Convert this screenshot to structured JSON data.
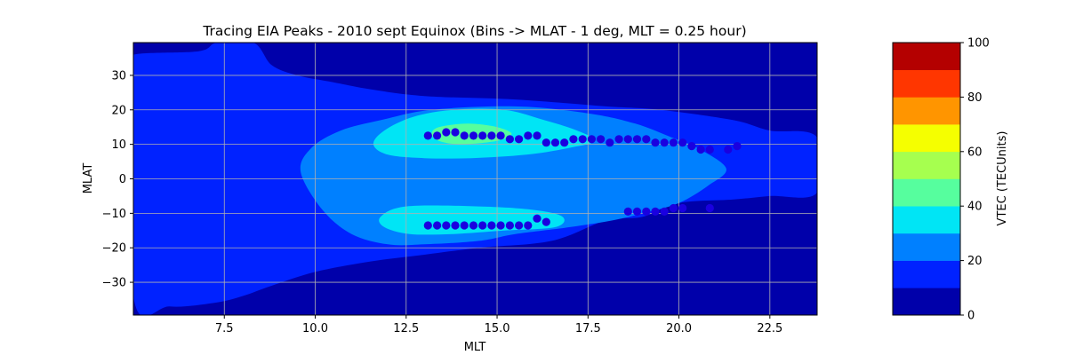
{
  "chart_data": {
    "type": "heatmap",
    "subtype": "filled-contour with scatter overlay",
    "title": "Tracing EIA Peaks - 2010 sept Equinox (Bins -> MLAT - 1 deg, MLT = 0.25 hour)",
    "xlabel": "MLT",
    "ylabel": "MLAT",
    "xlim": [
      5.0,
      23.8
    ],
    "ylim": [
      -39.5,
      39.5
    ],
    "x_ticks": [
      7.5,
      10.0,
      12.5,
      15.0,
      17.5,
      20.0,
      22.5
    ],
    "x_tick_labels": [
      "7.5",
      "10.0",
      "12.5",
      "15.0",
      "17.5",
      "20.0",
      "22.5"
    ],
    "y_ticks": [
      -30,
      -20,
      -10,
      0,
      10,
      20,
      30
    ],
    "y_tick_labels": [
      "−30",
      "−20",
      "−10",
      "0",
      "10",
      "20",
      "30"
    ],
    "grid": true,
    "colorbar": {
      "label": "VTEC (TECUnits)",
      "levels": [
        0,
        10,
        20,
        30,
        40,
        50,
        60,
        70,
        80,
        90,
        100
      ],
      "tick_values": [
        0,
        20,
        40,
        60,
        80,
        100
      ],
      "tick_labels": [
        "0",
        "20",
        "40",
        "60",
        "80",
        "100"
      ],
      "colors": [
        "#0000aa",
        "#0022ff",
        "#0080ff",
        "#00e5f5",
        "#56fe9e",
        "#a6ff4f",
        "#f5ff00",
        "#ff9500",
        "#ff3600",
        "#b40000"
      ]
    },
    "contours": [
      {
        "level": 10,
        "points": [
          [
            5.0,
            32
          ],
          [
            5.0,
            36
          ],
          [
            6.8,
            37
          ],
          [
            7.3,
            39.5
          ],
          [
            8.3,
            39.5
          ],
          [
            8.8,
            33
          ],
          [
            9.5,
            30
          ],
          [
            10.5,
            28
          ],
          [
            11.5,
            26
          ],
          [
            13.0,
            24
          ],
          [
            15.5,
            23
          ],
          [
            18.0,
            21
          ],
          [
            19.5,
            20
          ],
          [
            21.5,
            17
          ],
          [
            22.5,
            14
          ],
          [
            23.8,
            12
          ],
          [
            23.8,
            -4
          ],
          [
            22.5,
            -5
          ],
          [
            21.5,
            -6
          ],
          [
            20.0,
            -7
          ],
          [
            19.0,
            -11
          ],
          [
            18.0,
            -12
          ],
          [
            16.5,
            -18
          ],
          [
            14.5,
            -20
          ],
          [
            13.0,
            -22
          ],
          [
            11.5,
            -24
          ],
          [
            10.0,
            -27
          ],
          [
            8.8,
            -31
          ],
          [
            8.0,
            -34
          ],
          [
            7.2,
            -36
          ],
          [
            6.0,
            -37
          ],
          [
            5.0,
            -34
          ]
        ]
      },
      {
        "level": 20,
        "points": [
          [
            9.6,
            2
          ],
          [
            9.9,
            9
          ],
          [
            10.7,
            14
          ],
          [
            11.8,
            17
          ],
          [
            13.2,
            20
          ],
          [
            15.5,
            21
          ],
          [
            17.5,
            19
          ],
          [
            18.8,
            16
          ],
          [
            19.8,
            12
          ],
          [
            20.5,
            9
          ],
          [
            21.3,
            3
          ],
          [
            20.8,
            -2
          ],
          [
            20.0,
            -7
          ],
          [
            19.0,
            -10
          ],
          [
            18.2,
            -12
          ],
          [
            17.0,
            -14
          ],
          [
            15.5,
            -16
          ],
          [
            14.5,
            -18
          ],
          [
            13.0,
            -19
          ],
          [
            12.0,
            -19
          ],
          [
            11.0,
            -16
          ],
          [
            10.2,
            -9
          ]
        ]
      },
      {
        "level": 30,
        "points": [
          [
            11.6,
            10
          ],
          [
            11.9,
            14
          ],
          [
            12.7,
            18
          ],
          [
            13.8,
            20
          ],
          [
            15.2,
            20
          ],
          [
            16.3,
            17
          ],
          [
            17.2,
            14
          ],
          [
            17.7,
            11
          ],
          [
            17.0,
            9
          ],
          [
            15.8,
            7
          ],
          [
            14.3,
            6
          ],
          [
            13.0,
            6
          ],
          [
            12.0,
            7
          ]
        ]
      },
      {
        "level": 30,
        "points": [
          [
            11.8,
            -11
          ],
          [
            12.5,
            -8
          ],
          [
            14.5,
            -8
          ],
          [
            16.0,
            -9
          ],
          [
            16.8,
            -11
          ],
          [
            16.6,
            -14
          ],
          [
            15.2,
            -15
          ],
          [
            13.8,
            -16
          ],
          [
            12.6,
            -16
          ],
          [
            11.9,
            -14
          ]
        ]
      },
      {
        "level": 40,
        "points": [
          [
            13.2,
            13
          ],
          [
            13.4,
            15
          ],
          [
            14.2,
            16
          ],
          [
            15.0,
            15
          ],
          [
            15.4,
            13
          ],
          [
            15.0,
            11
          ],
          [
            14.0,
            10
          ],
          [
            13.4,
            11
          ]
        ]
      }
    ],
    "series": [
      {
        "name": "",
        "marker": "circle",
        "color": "#1a00e0",
        "x": [
          13.1,
          13.35,
          13.6,
          13.85,
          14.1,
          14.35,
          14.6,
          14.85,
          15.1,
          15.35,
          15.6,
          15.85,
          16.1,
          16.35,
          16.6,
          16.85,
          17.1,
          17.35,
          17.6,
          17.85,
          18.1,
          18.35,
          18.6,
          18.85,
          19.1,
          19.35,
          19.6,
          19.85,
          20.1,
          20.35,
          20.6,
          20.85,
          21.35,
          21.6
        ],
        "y": [
          12.5,
          12.5,
          13.5,
          13.5,
          12.5,
          12.5,
          12.5,
          12.5,
          12.5,
          11.5,
          11.5,
          12.5,
          12.5,
          10.5,
          10.5,
          10.5,
          11.5,
          11.5,
          11.5,
          11.5,
          10.5,
          11.5,
          11.5,
          11.5,
          11.5,
          10.5,
          10.5,
          10.5,
          10.5,
          9.5,
          8.5,
          8.5,
          8.5,
          9.5
        ]
      },
      {
        "name": "",
        "marker": "circle",
        "color": "#1a00e0",
        "x": [
          13.1,
          13.35,
          13.6,
          13.85,
          14.1,
          14.35,
          14.6,
          14.85,
          15.1,
          15.35,
          15.6,
          15.85,
          16.1,
          16.35,
          18.6,
          18.85,
          19.1,
          19.35,
          19.6,
          19.85,
          20.1,
          20.85
        ],
        "y": [
          -13.5,
          -13.5,
          -13.5,
          -13.5,
          -13.5,
          -13.5,
          -13.5,
          -13.5,
          -13.5,
          -13.5,
          -13.5,
          -13.5,
          -11.5,
          -12.5,
          -9.5,
          -9.5,
          -9.5,
          -9.5,
          -9.5,
          -8.5,
          -8.5,
          -8.5
        ]
      }
    ]
  }
}
